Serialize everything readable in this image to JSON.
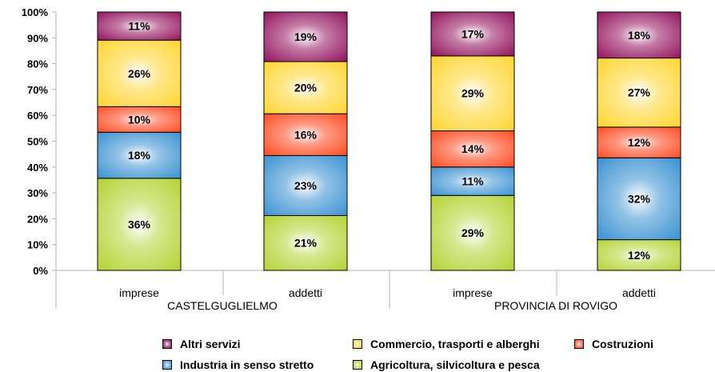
{
  "chart_data": {
    "type": "bar",
    "stacked": true,
    "percent": true,
    "ylim": [
      0,
      100
    ],
    "yticks": [
      "0%",
      "10%",
      "20%",
      "30%",
      "40%",
      "50%",
      "60%",
      "70%",
      "80%",
      "90%",
      "100%"
    ],
    "categories": [
      "imprese",
      "addetti",
      "imprese",
      "addetti"
    ],
    "groups": [
      "CASTELGUGLIELMO",
      "PROVINCIA DI ROVIGO"
    ],
    "series": [
      {
        "name": "Agricoltura, silvicoltura e pesca",
        "color": "#b5d334",
        "values": [
          36,
          21,
          29,
          12
        ],
        "labels": [
          "36%",
          "21%",
          "29%",
          "12%"
        ]
      },
      {
        "name": "Industria in senso stretto",
        "color": "#3a92d2",
        "values": [
          18,
          23,
          11,
          32
        ],
        "labels": [
          "18%",
          "23%",
          "11%",
          "32%"
        ]
      },
      {
        "name": "Costruzioni",
        "color": "#ff4a20",
        "values": [
          10,
          16,
          14,
          12
        ],
        "labels": [
          "10%",
          "16%",
          "14%",
          "12%"
        ]
      },
      {
        "name": "Commercio, trasporti e alberghi",
        "color": "#ffd630",
        "values": [
          26,
          20,
          29,
          27
        ],
        "labels": [
          "26%",
          "20%",
          "29%",
          "27%"
        ]
      },
      {
        "name": "Altri servizi",
        "color": "#93135f",
        "values": [
          11,
          19,
          17,
          18
        ],
        "labels": [
          "11%",
          "19%",
          "17%",
          "18%"
        ]
      }
    ],
    "legend_order": [
      4,
      3,
      2,
      1,
      0
    ],
    "legend_position": "bottom",
    "grid": false
  }
}
